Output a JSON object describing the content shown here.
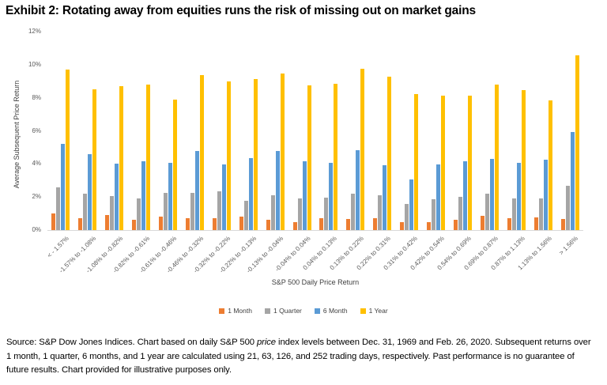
{
  "title": "Exhibit 2:  Rotating away from equities runs the risk of missing out on market gains",
  "chart_data": {
    "type": "bar",
    "title": "Exhibit 2:  Rotating away from equities runs the risk of missing out on market gains",
    "xlabel": "S&P 500 Daily Price Return",
    "ylabel": "Average Subsequent Price Return",
    "ylim": [
      0,
      12
    ],
    "yticks": [
      0,
      2,
      4,
      6,
      8,
      10,
      12
    ],
    "ytick_suffix": "%",
    "grid": false,
    "legend_position": "bottom",
    "categories": [
      "< - 1.57%",
      "-1.57% to -1.08%",
      "-1.08% to -0.82%",
      "-0.82% to -0.61%",
      "-0.61% to -0.46%",
      "-0.46% to -0.32%",
      "-0.32% to -0.22%",
      "-0.22% to -0.13%",
      "-0.13% to -0.04%",
      "-0.04% to 0.04%",
      "0.04% to 0.13%",
      "0.13% to 0.22%",
      "0.22% to 0.31%",
      "0.31% to 0.42%",
      "0.42% to 0.54%",
      "0.54% to 0.69%",
      "0.69% to 0.87%",
      "0.87% to 1.13%",
      "1.13% to 1.56%",
      "> 1.56%"
    ],
    "series": [
      {
        "name": "1 Month",
        "color": "#ED7D31",
        "values": [
          1.0,
          0.72,
          0.9,
          0.6,
          0.8,
          0.72,
          0.7,
          0.8,
          0.6,
          0.48,
          0.72,
          0.65,
          0.7,
          0.5,
          0.5,
          0.6,
          0.85,
          0.72,
          0.77,
          0.65
        ]
      },
      {
        "name": "1 Quarter",
        "color": "#A5A5A5",
        "values": [
          2.6,
          2.2,
          2.05,
          1.9,
          2.25,
          2.25,
          2.35,
          1.75,
          2.1,
          1.9,
          1.95,
          2.2,
          2.1,
          1.6,
          1.85,
          2.0,
          2.2,
          1.9,
          1.9,
          2.7
        ]
      },
      {
        "name": "6 Month",
        "color": "#5B9BD5",
        "values": [
          5.2,
          4.6,
          4.0,
          4.15,
          4.05,
          4.78,
          3.95,
          4.35,
          4.78,
          4.15,
          4.05,
          4.85,
          3.9,
          3.05,
          3.95,
          4.15,
          4.3,
          4.08,
          4.27,
          5.95
        ]
      },
      {
        "name": "1 Year",
        "color": "#FFC000",
        "values": [
          9.7,
          8.5,
          8.7,
          8.82,
          7.9,
          9.36,
          9.0,
          9.15,
          9.47,
          8.75,
          8.85,
          9.75,
          9.28,
          8.2,
          8.12,
          8.12,
          8.78,
          8.48,
          7.85,
          10.55
        ]
      }
    ]
  },
  "footer": {
    "part1": "Source:  S&P Dow Jones Indices.  Chart based on daily S&P 500 ",
    "italic": "price",
    "part2": " index levels between Dec. 31, 1969 and Feb. 26, 2020.  Subsequent returns over 1 month, 1 quarter, 6 months, and 1 year are calculated using 21, 63, 126, and 252 trading days, respectively. Past performance is no guarantee of future results.  Chart provided for illustrative purposes only."
  }
}
